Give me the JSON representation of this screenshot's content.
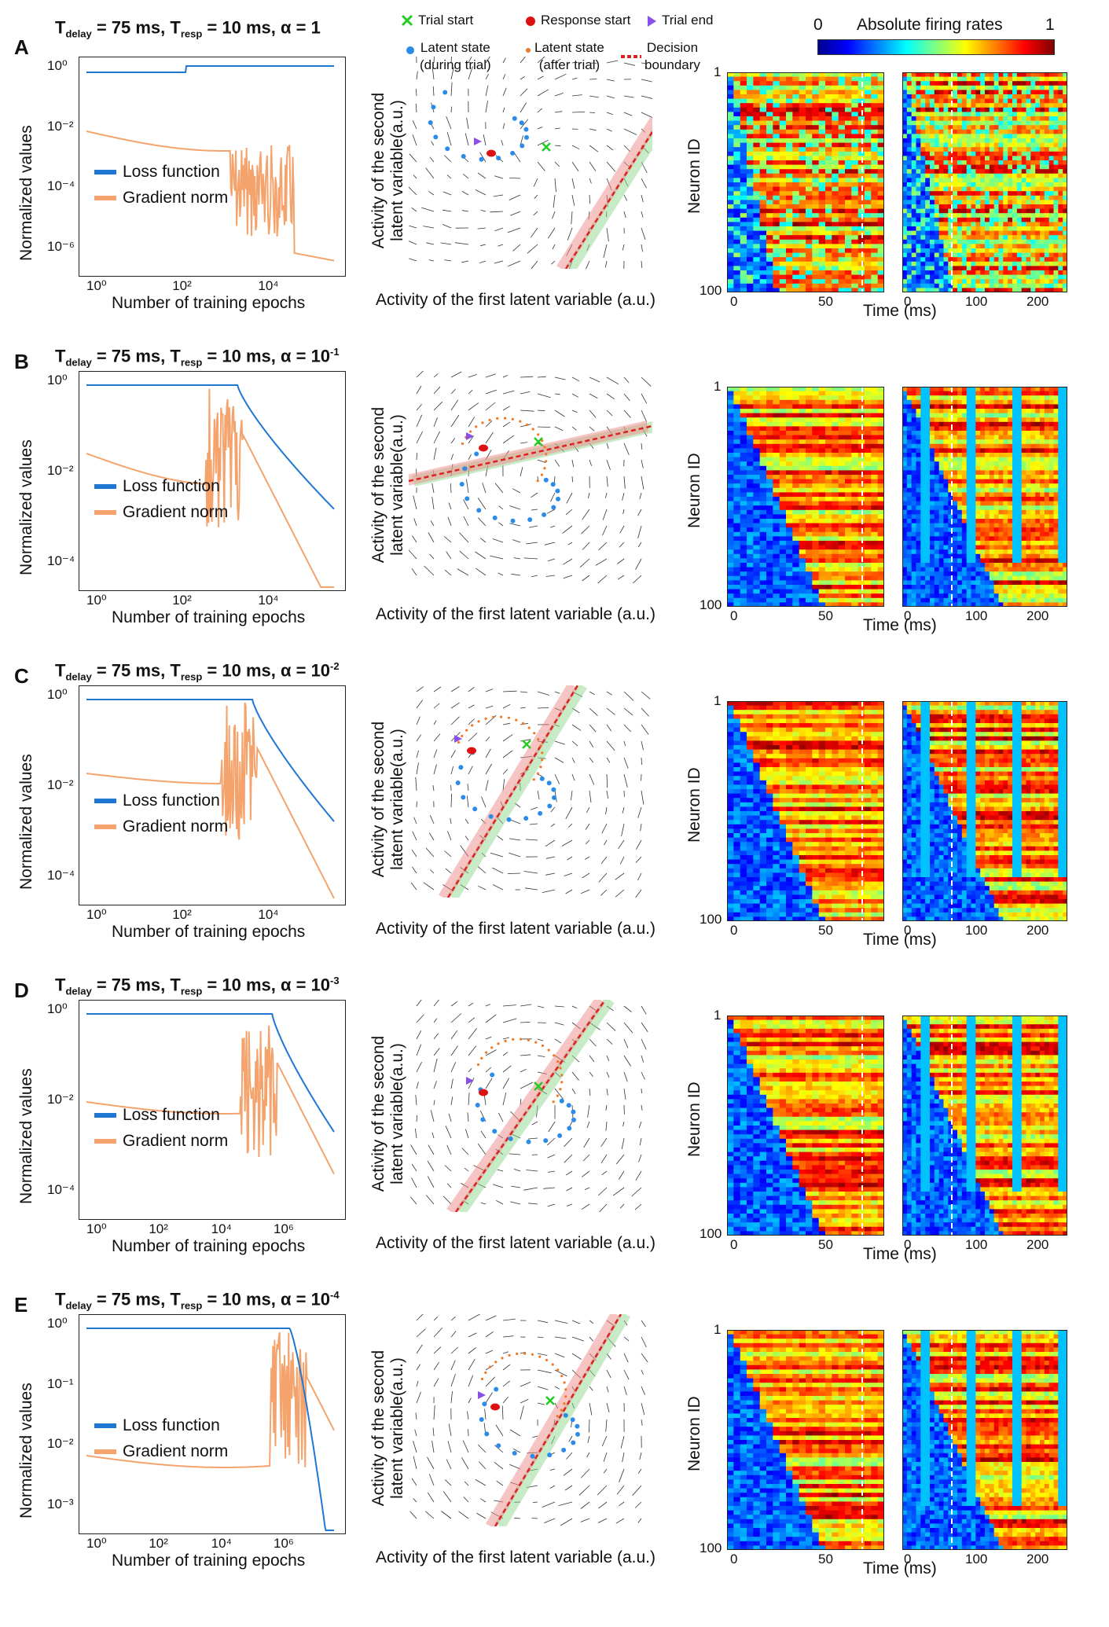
{
  "header": {
    "legend_trial_start": "Trial start",
    "legend_response_start": "Response start",
    "legend_trial_end": "Trial end",
    "legend_latent_during": "Latent state\n(during trial)",
    "legend_latent_during_1": "Latent state",
    "legend_latent_during_2": "(during trial)",
    "legend_latent_after_1": "Latent state",
    "legend_latent_after_2": "(after trial)",
    "legend_boundary_1": "Decision",
    "legend_boundary_2": "boundary",
    "colorbar_title": "Absolute firing rates",
    "colorbar_min": "0",
    "colorbar_max": "1"
  },
  "labels": {
    "loss_ylabel": "Normalized values",
    "loss_xlabel": "Number of training epochs",
    "loss_legend": "Loss function",
    "grad_legend": "Gradient norm",
    "phase_ylabel_1": "Activity of the second",
    "phase_ylabel_2": "latent variable(a.u.)",
    "phase_xlabel": "Activity of the first latent variable (a.u.)",
    "heat_ylabel": "Neuron ID",
    "heat_xlabel": "Time (ms)",
    "neuron_top": "1",
    "neuron_bottom": "100"
  },
  "colors": {
    "loss": "#1f77d4",
    "grad": "#f5a36c",
    "trial_start": "#22cc22",
    "response_start": "#dd1111",
    "trial_end": "#8a4fe8",
    "latent_during": "#2a8be8",
    "latent_after": "#f07820",
    "boundary": "#dd2222"
  },
  "panels": [
    {
      "letter": "A",
      "title_main": "T",
      "title_sub1": "delay",
      "title_mid": " = 75 ms, T",
      "title_sub2": "resp",
      "title_alpha": " = 10 ms, α  = 1",
      "alpha_exp": "",
      "yticks": [
        "10⁰",
        "10⁻²",
        "10⁻⁴",
        "10⁻⁶"
      ],
      "xticks": [
        "10⁰",
        "10²",
        "10⁴"
      ],
      "heat_xticks_left": [
        "0",
        "50"
      ],
      "heat_xticks_right": [
        "0",
        "100",
        "200"
      ]
    },
    {
      "letter": "B",
      "title_main": "T",
      "title_sub1": "delay",
      "title_mid": " = 75 ms, T",
      "title_sub2": "resp",
      "title_alpha": " = 10 ms, α  = 10",
      "alpha_exp": "-1",
      "yticks": [
        "10⁰",
        "10⁻²",
        "10⁻⁴"
      ],
      "xticks": [
        "10⁰",
        "10²",
        "10⁴"
      ],
      "heat_xticks_left": [
        "0",
        "50"
      ],
      "heat_xticks_right": [
        "0",
        "100",
        "200"
      ]
    },
    {
      "letter": "C",
      "title_main": "T",
      "title_sub1": "delay",
      "title_mid": " = 75 ms, T",
      "title_sub2": "resp",
      "title_alpha": " = 10 ms, α  = 10",
      "alpha_exp": "-2",
      "yticks": [
        "10⁰",
        "10⁻²",
        "10⁻⁴"
      ],
      "xticks": [
        "10⁰",
        "10²",
        "10⁴"
      ],
      "heat_xticks_left": [
        "0",
        "50"
      ],
      "heat_xticks_right": [
        "0",
        "100",
        "200"
      ]
    },
    {
      "letter": "D",
      "title_main": "T",
      "title_sub1": "delay",
      "title_mid": " = 75 ms, T",
      "title_sub2": "resp",
      "title_alpha": " = 10 ms, α  = 10",
      "alpha_exp": "-3",
      "yticks": [
        "10⁰",
        "10⁻²",
        "10⁻⁴"
      ],
      "xticks": [
        "10⁰",
        "10²",
        "10⁴",
        "10⁶"
      ],
      "heat_xticks_left": [
        "0",
        "50"
      ],
      "heat_xticks_right": [
        "0",
        "100",
        "200"
      ]
    },
    {
      "letter": "E",
      "title_main": "T",
      "title_sub1": "delay",
      "title_mid": " = 75 ms, T",
      "title_sub2": "resp",
      "title_alpha": " = 10 ms, α  = 10",
      "alpha_exp": "-4",
      "yticks": [
        "10⁰",
        "10⁻¹",
        "10⁻²",
        "10⁻³"
      ],
      "xticks": [
        "10⁰",
        "10²",
        "10⁴",
        "10⁶"
      ],
      "heat_xticks_left": [
        "0",
        "50"
      ],
      "heat_xticks_right": [
        "0",
        "100",
        "200"
      ]
    }
  ]
}
